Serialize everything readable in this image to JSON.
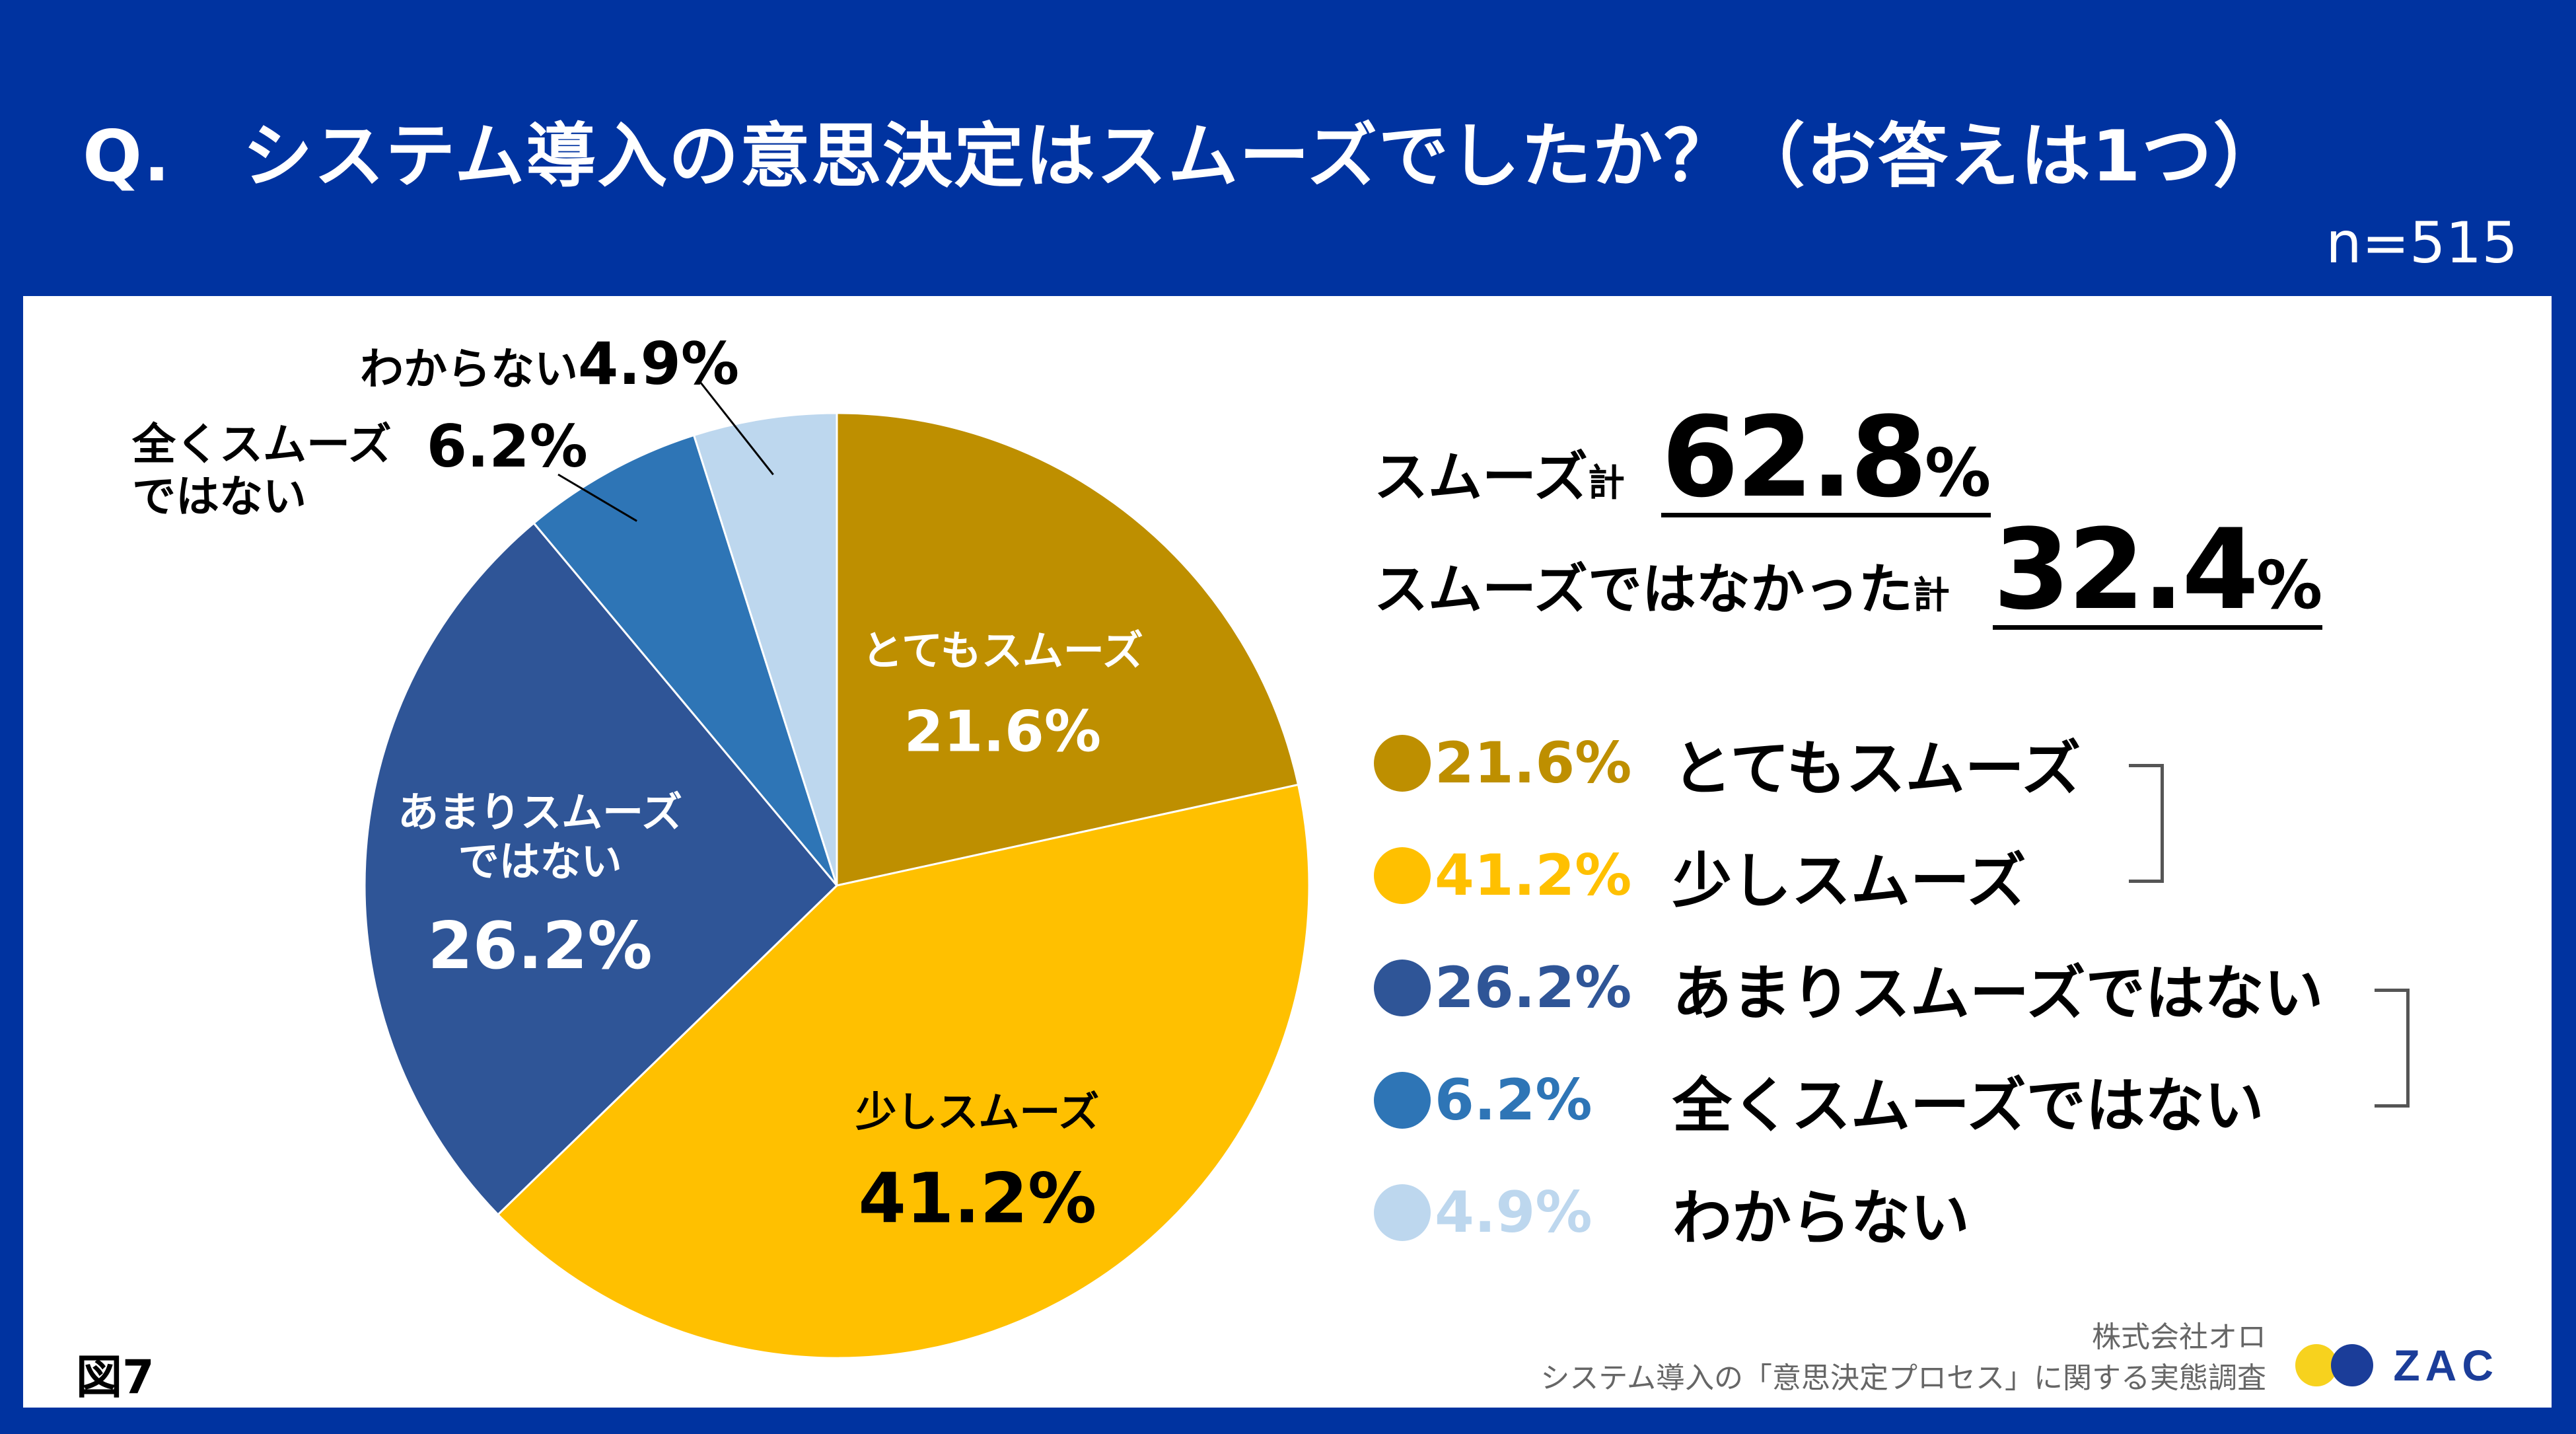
{
  "header": {
    "title": "Q.　システム導入の意思決定はスムーズでしたか？（お答えは1つ）",
    "sample_size": "n=515"
  },
  "summary": {
    "smooth_label": "スムーズ",
    "smooth_suffix": "計",
    "smooth_value": "62.8",
    "not_smooth_label": "スムーズではなかった",
    "not_smooth_suffix": "計",
    "not_smooth_value": "32.4",
    "percent_sign": "%"
  },
  "chart_data": {
    "type": "pie",
    "categories": [
      "とてもスムーズ",
      "少しスムーズ",
      "あまりスムーズではない",
      "全くスムーズではない",
      "わからない"
    ],
    "values": [
      21.6,
      41.2,
      26.2,
      6.2,
      4.9
    ],
    "value_labels": [
      "21.6%",
      "41.2%",
      "26.2%",
      "6.2%",
      "4.9%"
    ],
    "colors": [
      "#be8f00",
      "#ffc000",
      "#2f5597",
      "#2e75b6",
      "#bdd7ee"
    ],
    "start_angle": "12 o'clock",
    "direction": "clockwise",
    "slice_labels": [
      {
        "text": "とてもスムーズ",
        "value": "21.6%"
      },
      {
        "text": "少しスムーズ",
        "value": "41.2%"
      },
      {
        "text": "あまりスムーズ\nではない",
        "value": "26.2%"
      },
      {
        "text": "全くスムーズ\nではない",
        "value": "6.2%"
      },
      {
        "text": "わからない",
        "value": "4.9%"
      }
    ]
  },
  "legend": [
    {
      "value": "21.6%",
      "label": "とてもスムーズ",
      "color": "#be8f00"
    },
    {
      "value": "41.2%",
      "label": "少しスムーズ",
      "color": "#ffc000"
    },
    {
      "value": "26.2%",
      "label": "あまりスムーズではない",
      "color": "#2f5597"
    },
    {
      "value": "6.2%",
      "label": "全くスムーズではない",
      "color": "#2e75b6"
    },
    {
      "value": "4.9%",
      "label": "わからない",
      "color": "#bdd7ee"
    }
  ],
  "footer": {
    "figure_label": "図7",
    "source_company": "株式会社オロ",
    "source_survey": "システム導入の「意思決定プロセス」に関する実態調査",
    "logo_text": "ZAC"
  }
}
